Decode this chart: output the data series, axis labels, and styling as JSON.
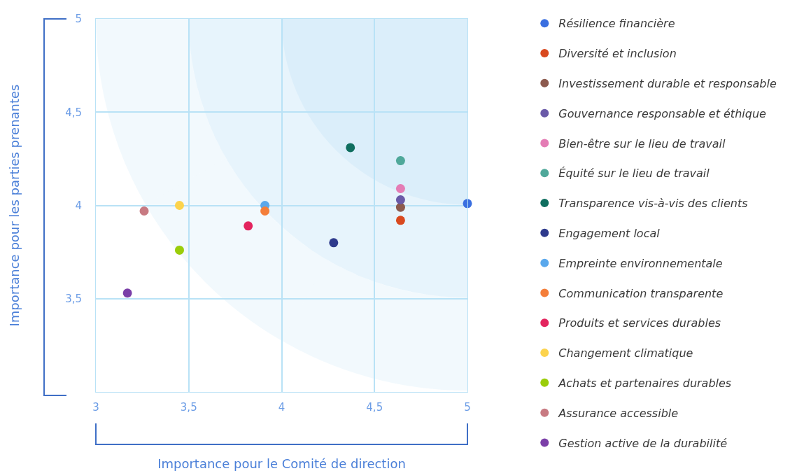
{
  "chart_data": {
    "type": "scatter",
    "xlabel": "Importance pour le Comité de direction",
    "ylabel": "Importance pour les parties prenantes",
    "xlim": [
      3,
      5
    ],
    "ylim": [
      3,
      5
    ],
    "xticks": [
      3,
      {
        "value": 3.5,
        "label": "3,5"
      },
      4,
      {
        "value": 4.5,
        "label": "4,5"
      },
      5
    ],
    "yticks": [
      {
        "value": 3.5,
        "label": "3,5"
      },
      4,
      {
        "value": 4.5,
        "label": "4,5"
      },
      5
    ],
    "grid": true,
    "legend": "right",
    "marker": "circle",
    "series": [
      {
        "name": "Résilience financière",
        "color": "#3a6fe0",
        "x": [
          5.0
        ],
        "values": [
          4.01
        ]
      },
      {
        "name": "Diversité et inclusion",
        "color": "#d9491f",
        "x": [
          4.64
        ],
        "values": [
          3.92
        ]
      },
      {
        "name": "Investissement durable et responsable",
        "color": "#8c5a4e",
        "x": [
          4.64
        ],
        "values": [
          3.99
        ]
      },
      {
        "name": "Gouvernance responsable et éthique",
        "color": "#6a5aa8",
        "x": [
          4.64
        ],
        "values": [
          4.03
        ]
      },
      {
        "name": "Bien-être sur le lieu de travail",
        "color": "#e47cb5",
        "x": [
          4.64
        ],
        "values": [
          4.09
        ]
      },
      {
        "name": "Équité sur le lieu de travail",
        "color": "#4fa89a",
        "x": [
          4.64
        ],
        "values": [
          4.24
        ]
      },
      {
        "name": "Transparence vis-à-vis des clients",
        "color": "#0f6e5f",
        "x": [
          4.37
        ],
        "values": [
          4.31
        ]
      },
      {
        "name": "Engagement local",
        "color": "#2e3a8c",
        "x": [
          4.28
        ],
        "values": [
          3.8
        ]
      },
      {
        "name": "Empreinte environnementale",
        "color": "#5aa8ec",
        "x": [
          3.91
        ],
        "values": [
          4.0
        ]
      },
      {
        "name": "Communication transparente",
        "color": "#f47e3a",
        "x": [
          3.91
        ],
        "values": [
          3.97
        ]
      },
      {
        "name": "Produits et services durables",
        "color": "#e3245e",
        "x": [
          3.82
        ],
        "values": [
          3.89
        ]
      },
      {
        "name": "Changement climatique",
        "color": "#fcd34d",
        "x": [
          3.45
        ],
        "values": [
          4.0
        ]
      },
      {
        "name": "Achats et partenaires durables",
        "color": "#9acd0a",
        "x": [
          3.45
        ],
        "values": [
          3.76
        ]
      },
      {
        "name": "Assurance accessible",
        "color": "#c87a82",
        "x": [
          3.26
        ],
        "values": [
          3.97
        ]
      },
      {
        "name": "Gestion active de la durabilité",
        "color": "#7b3fa8",
        "x": [
          3.17
        ],
        "values": [
          3.53
        ]
      }
    ]
  }
}
